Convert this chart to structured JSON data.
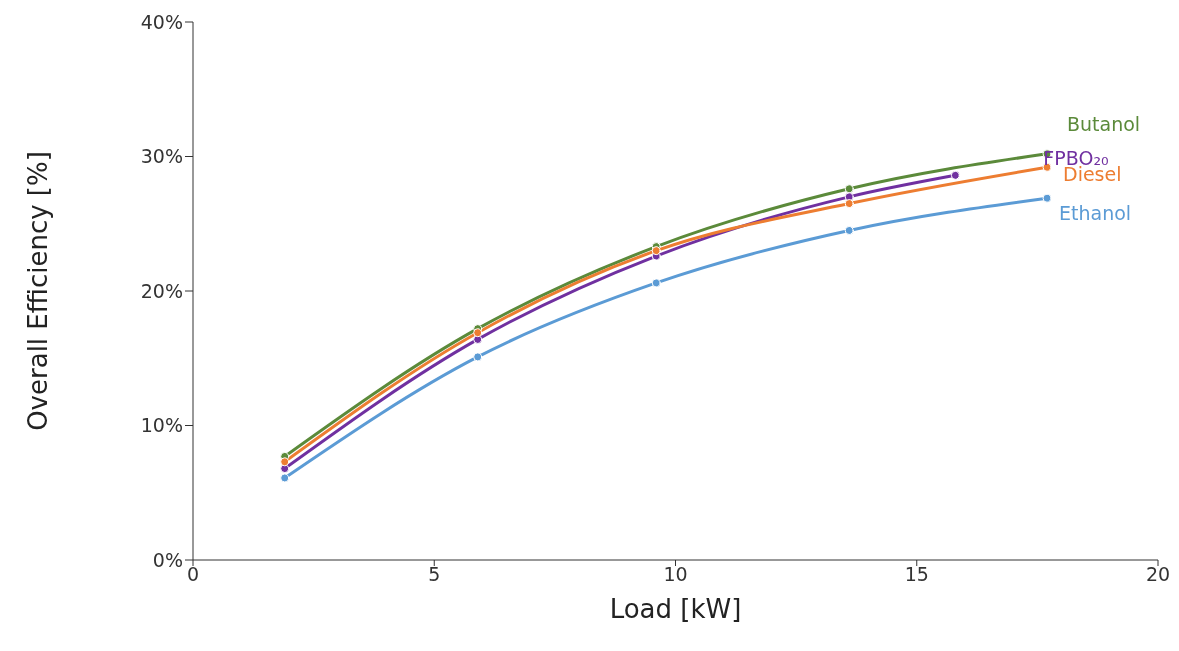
{
  "chart_data": {
    "type": "line",
    "xlabel": "Load [kW]",
    "ylabel": "Overall Efficiency [%]",
    "xlim": [
      0,
      20
    ],
    "xticks": [
      0,
      5,
      10,
      15,
      20
    ],
    "ylim": [
      0,
      40
    ],
    "yticks": [
      {
        "value": 0,
        "label": "0%"
      },
      {
        "value": 10,
        "label": "10%"
      },
      {
        "value": 20,
        "label": "20%"
      },
      {
        "value": 30,
        "label": "30%"
      },
      {
        "value": 40,
        "label": "40%"
      }
    ],
    "grid": false,
    "legend": false,
    "marker": "circle",
    "line_style": "solid",
    "series": [
      {
        "name": "Butanol",
        "color": "#5b8a3a",
        "x": [
          1.9,
          5.9,
          9.6,
          13.6,
          17.7
        ],
        "values": [
          7.7,
          17.2,
          23.3,
          27.6,
          30.2
        ]
      },
      {
        "name": "FPBO₂₀",
        "color": "#7030a0",
        "x": [
          1.9,
          5.9,
          9.6,
          13.6,
          15.8
        ],
        "values": [
          6.8,
          16.4,
          22.6,
          27.0,
          28.6
        ]
      },
      {
        "name": "Diesel",
        "color": "#ed7d31",
        "x": [
          1.9,
          5.9,
          9.6,
          13.6,
          17.7
        ],
        "values": [
          7.3,
          16.9,
          23.0,
          26.5,
          29.2
        ]
      },
      {
        "name": "Ethanol",
        "color": "#5b9bd5",
        "x": [
          1.9,
          5.9,
          9.6,
          13.6,
          17.7
        ],
        "values": [
          6.1,
          15.1,
          20.6,
          24.5,
          26.9
        ]
      }
    ]
  }
}
